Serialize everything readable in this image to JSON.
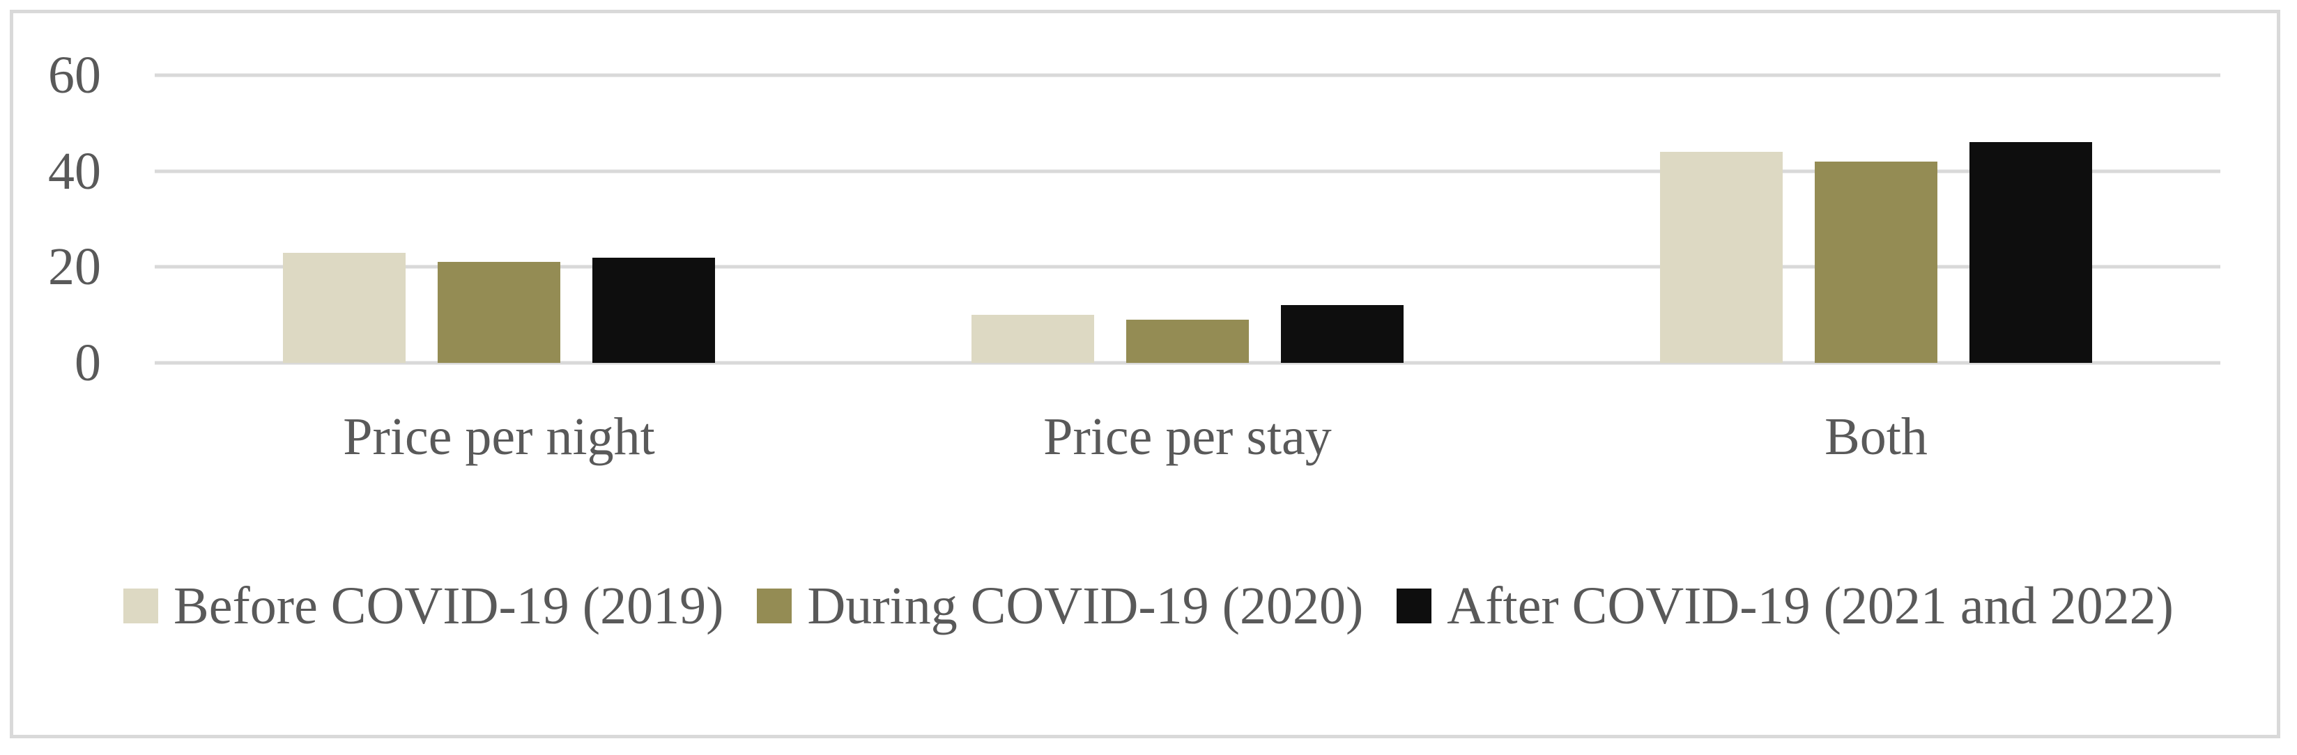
{
  "figure": {
    "background": "#FFFFFF",
    "frame_border_color": "#D9D9D9",
    "text_color": "#595959",
    "gridline_color": "#D9D9D9"
  },
  "chart_data": {
    "type": "bar",
    "title": "",
    "xlabel": "",
    "ylabel": "",
    "categories": [
      "Price per night",
      "Price per stay",
      "Both"
    ],
    "series": [
      {
        "name": "Before COVID-19 (2019)",
        "color": "#DDD9C3",
        "values": [
          23,
          10,
          44
        ]
      },
      {
        "name": "During COVID-19 (2020)",
        "color": "#948C54",
        "values": [
          21,
          9,
          42
        ]
      },
      {
        "name": "After COVID-19 (2021 and 2022)",
        "color": "#0E0E0E",
        "values": [
          22,
          12,
          46
        ]
      }
    ],
    "ylim": [
      0,
      60
    ],
    "yticks": [
      0,
      20,
      40,
      60
    ],
    "grid": true,
    "legend_position": "bottom"
  }
}
